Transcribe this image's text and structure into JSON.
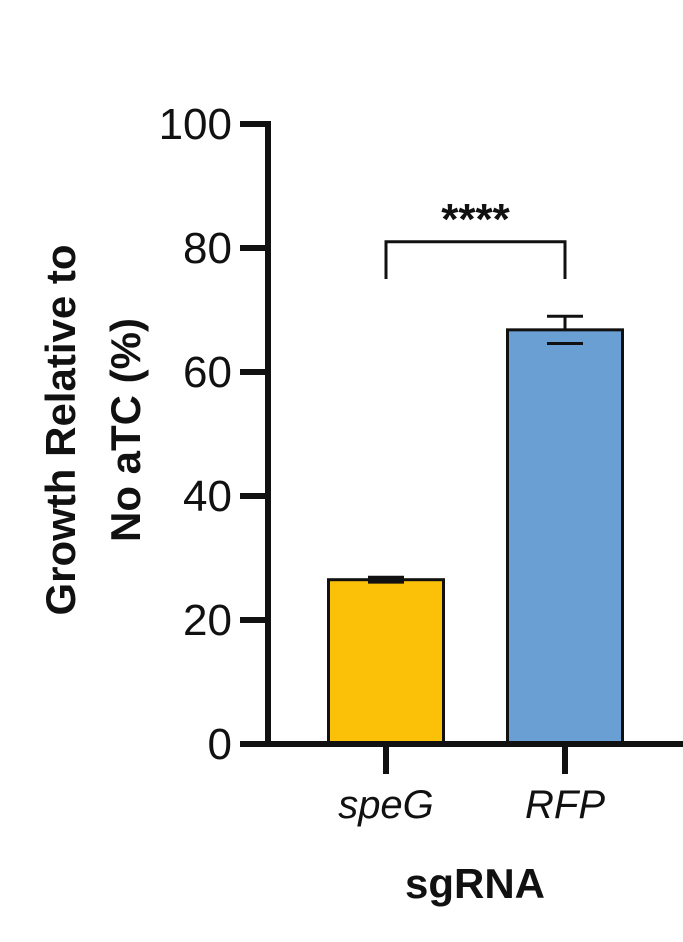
{
  "chart_data": {
    "type": "bar",
    "categories": [
      "speG",
      "RFP"
    ],
    "values": [
      26.5,
      66.8
    ],
    "errors": [
      0.4,
      2.2
    ],
    "colors": [
      "#FBC109",
      "#6A9FD4"
    ],
    "ylim": [
      0,
      100
    ],
    "yticks": [
      "0",
      "20",
      "40",
      "60",
      "80",
      "100"
    ],
    "ylabel_lines": [
      "Growth Relative to",
      "No  aTC (%)"
    ],
    "xlabel": "sgRNA",
    "significance": {
      "label": "****",
      "from": "speG",
      "to": "RFP",
      "bracket_y": 81,
      "drop_to": 75
    }
  }
}
